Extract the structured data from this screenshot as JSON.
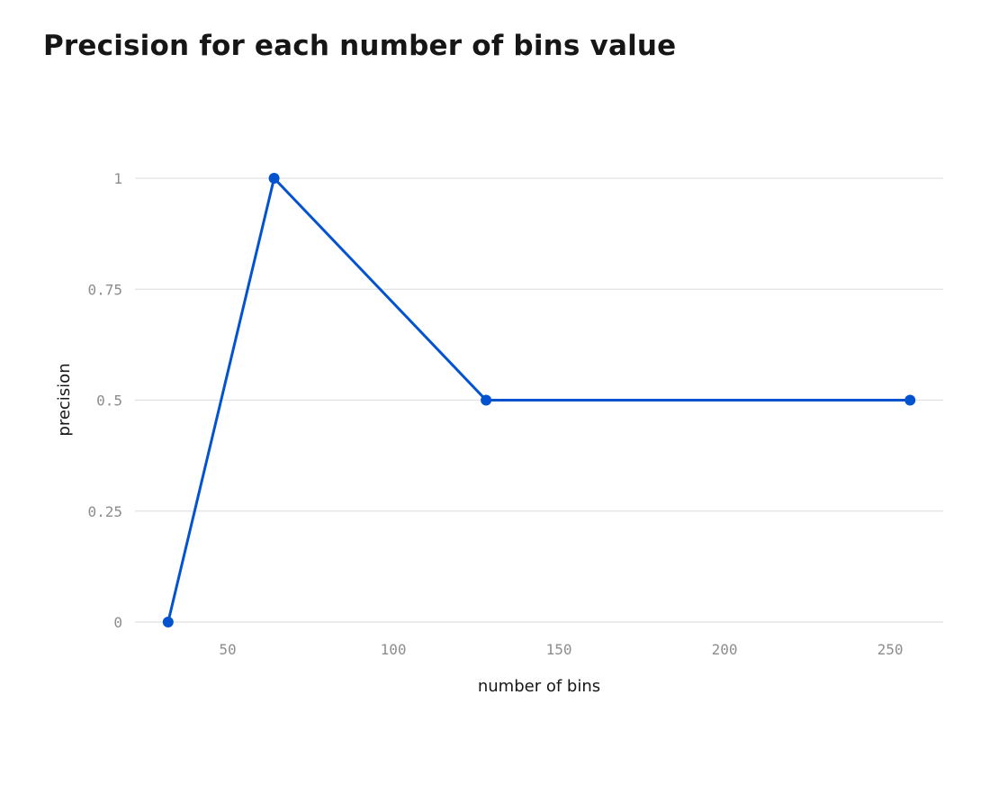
{
  "chart_data": {
    "type": "line",
    "title": "Precision for each number of bins value",
    "xlabel": "number of bins",
    "ylabel": "precision",
    "x_ticks": [
      50,
      100,
      150,
      200,
      250
    ],
    "y_ticks": [
      0,
      0.25,
      0.5,
      0.75,
      1
    ],
    "xlim": [
      22,
      266
    ],
    "ylim": [
      0,
      1
    ],
    "grid": true,
    "series": [
      {
        "name": "precision",
        "color": "#0353d0",
        "x": [
          32,
          64,
          128,
          256
        ],
        "values": [
          0,
          1,
          0.5,
          0.5
        ]
      }
    ]
  }
}
